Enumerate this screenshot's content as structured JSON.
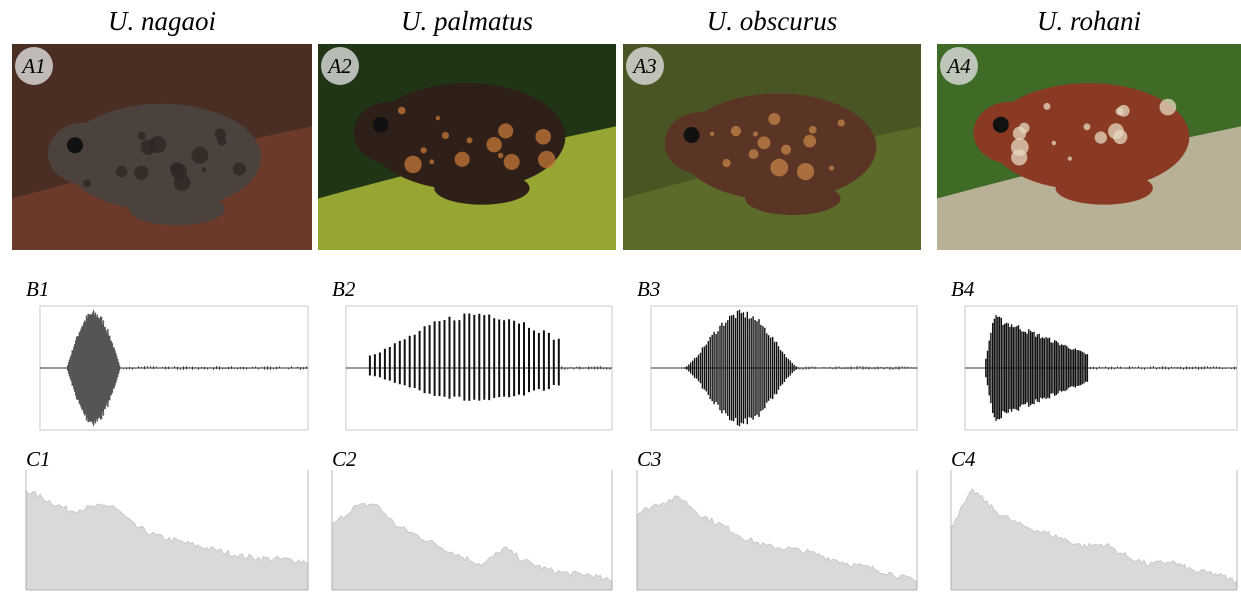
{
  "columns": [
    {
      "species": "U. nagaoi",
      "photo_label": "A1",
      "oscillogram_label": "B1",
      "spectrum_label": "C1"
    },
    {
      "species": "U. palmatus",
      "photo_label": "A2",
      "oscillogram_label": "B2",
      "spectrum_label": "C2"
    },
    {
      "species": "U. obscurus",
      "photo_label": "A3",
      "oscillogram_label": "B3",
      "spectrum_label": "C3"
    },
    {
      "species": "U. rohani",
      "photo_label": "A4",
      "oscillogram_label": "B4",
      "spectrum_label": "C4"
    }
  ]
}
